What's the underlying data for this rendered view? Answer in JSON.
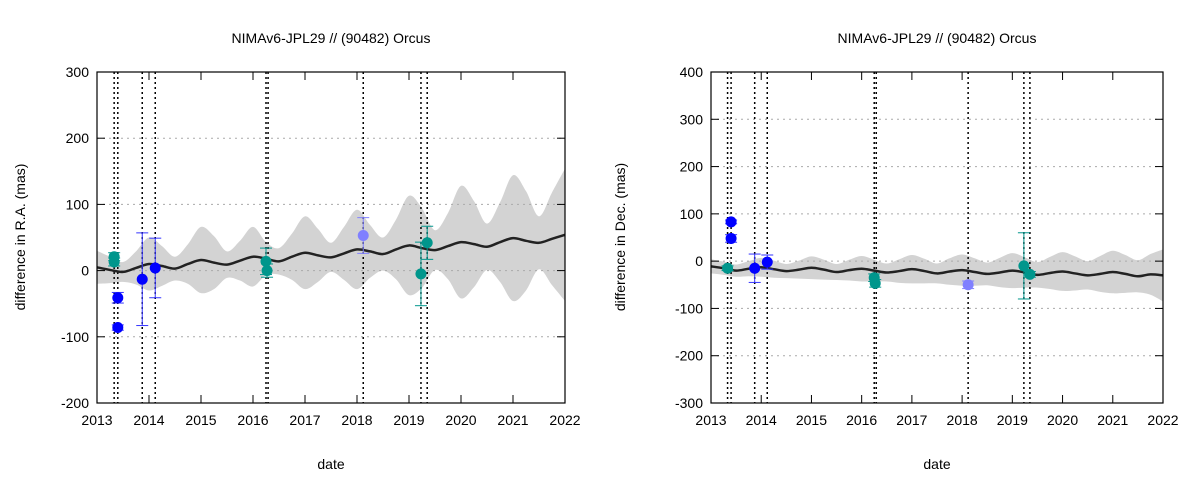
{
  "chart_data": [
    {
      "type": "scatter",
      "title": "NIMAv6-JPL29 // (90482) Orcus",
      "xlabel": "date",
      "ylabel": "difference in R.A. (mas)",
      "xlim": [
        2013,
        2022
      ],
      "ylim": [
        -200,
        300
      ],
      "xticks": [
        2013,
        2014,
        2015,
        2016,
        2017,
        2018,
        2019,
        2020,
        2021,
        2022
      ],
      "yticks": [
        -200,
        -100,
        0,
        100,
        200,
        300
      ],
      "grid": "horizontal dashed",
      "observation_dates": [
        2013.33,
        2013.4,
        2013.87,
        2014.12,
        2016.25,
        2016.29,
        2018.12,
        2019.23,
        2019.35
      ],
      "model": {
        "x_start": 2013,
        "x_step": 0.25,
        "mean": [
          5,
          1,
          -2,
          4,
          10,
          7,
          3,
          10,
          16,
          12,
          9,
          15,
          21,
          18,
          14,
          21,
          27,
          23,
          20,
          26,
          32,
          29,
          25,
          32,
          38,
          34,
          31,
          37,
          43,
          40,
          36,
          43,
          49,
          45,
          42,
          48,
          54
        ],
        "uncertainty": [
          25,
          20,
          15,
          25,
          40,
          30,
          18,
          30,
          50,
          40,
          20,
          30,
          45,
          25,
          20,
          35,
          55,
          40,
          22,
          40,
          60,
          40,
          25,
          45,
          75,
          60,
          30,
          50,
          85,
          65,
          35,
          60,
          95,
          75,
          40,
          70,
          100
        ]
      },
      "points": [
        {
          "x": 2013.33,
          "y": 21,
          "err": 6,
          "color": "#00968c"
        },
        {
          "x": 2013.33,
          "y": 13,
          "err": 6,
          "color": "#00968c"
        },
        {
          "x": 2013.4,
          "y": -41,
          "err": 8,
          "color": "#0000ff"
        },
        {
          "x": 2013.4,
          "y": -86,
          "err": 4,
          "color": "#0000ff"
        },
        {
          "x": 2013.87,
          "y": -13,
          "err": 70,
          "color": "#0000ff"
        },
        {
          "x": 2014.12,
          "y": 4,
          "err": 45,
          "color": "#0000ff"
        },
        {
          "x": 2016.25,
          "y": 14,
          "err": 20,
          "color": "#00968c"
        },
        {
          "x": 2016.27,
          "y": 0,
          "err": 10,
          "color": "#00968c"
        },
        {
          "x": 2018.12,
          "y": 53,
          "err": 27,
          "color": "#8080ff"
        },
        {
          "x": 2019.23,
          "y": -5,
          "err": 48,
          "color": "#00968c"
        },
        {
          "x": 2019.35,
          "y": 42,
          "err": 25,
          "color": "#00968c"
        }
      ]
    },
    {
      "type": "scatter",
      "title": "NIMAv6-JPL29 // (90482) Orcus",
      "xlabel": "date",
      "ylabel": "difference in Dec. (mas)",
      "xlim": [
        2013,
        2022
      ],
      "ylim": [
        -300,
        400
      ],
      "xticks": [
        2013,
        2014,
        2015,
        2016,
        2017,
        2018,
        2019,
        2020,
        2021,
        2022
      ],
      "yticks": [
        -300,
        -200,
        -100,
        0,
        100,
        200,
        300,
        400
      ],
      "grid": "horizontal dashed",
      "observation_dates": [
        2013.33,
        2013.4,
        2013.87,
        2014.12,
        2016.25,
        2016.29,
        2018.12,
        2019.23,
        2019.35
      ],
      "model": {
        "x_start": 2013,
        "x_step": 0.25,
        "mean": [
          -11,
          -15,
          -20,
          -16,
          -13,
          -17,
          -21,
          -18,
          -14,
          -18,
          -23,
          -19,
          -16,
          -20,
          -24,
          -21,
          -17,
          -21,
          -26,
          -22,
          -19,
          -23,
          -27,
          -24,
          -20,
          -24,
          -29,
          -25,
          -22,
          -26,
          -30,
          -27,
          -23,
          -27,
          -32,
          -28,
          -30
        ],
        "uncertainty": [
          15,
          14,
          13,
          16,
          20,
          18,
          15,
          19,
          24,
          21,
          17,
          22,
          27,
          23,
          19,
          25,
          30,
          26,
          21,
          28,
          33,
          29,
          24,
          31,
          37,
          32,
          27,
          34,
          41,
          36,
          30,
          38,
          45,
          40,
          34,
          43,
          55
        ]
      },
      "points": [
        {
          "x": 2013.33,
          "y": -15,
          "err": 5,
          "color": "#00968c"
        },
        {
          "x": 2013.4,
          "y": 83,
          "err": 4,
          "color": "#0000ff"
        },
        {
          "x": 2013.4,
          "y": 48,
          "err": 8,
          "color": "#0000ff"
        },
        {
          "x": 2013.87,
          "y": -15,
          "err": 30,
          "color": "#0000ff"
        },
        {
          "x": 2014.12,
          "y": -2,
          "err": 15,
          "color": "#0000ff"
        },
        {
          "x": 2016.25,
          "y": -35,
          "err": 8,
          "color": "#00968c"
        },
        {
          "x": 2016.27,
          "y": -47,
          "err": 8,
          "color": "#00968c"
        },
        {
          "x": 2018.12,
          "y": -50,
          "err": 8,
          "color": "#8080ff"
        },
        {
          "x": 2019.23,
          "y": -10,
          "err": 70,
          "color": "#00968c"
        },
        {
          "x": 2019.35,
          "y": -28,
          "err": 6,
          "color": "#00968c"
        }
      ]
    }
  ]
}
